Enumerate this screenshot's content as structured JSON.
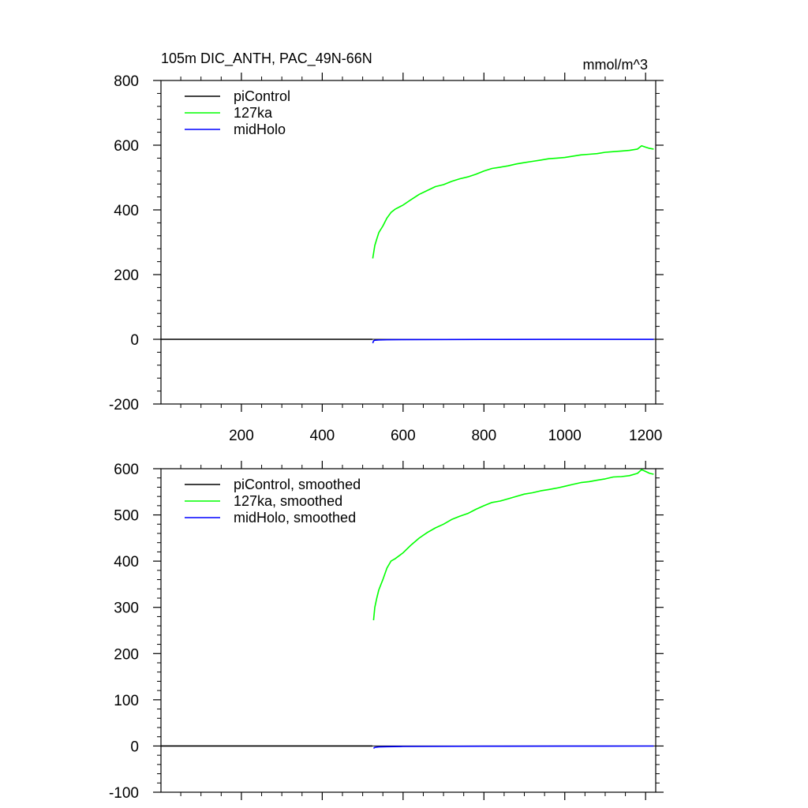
{
  "chart_data": [
    {
      "type": "line",
      "title": "105m DIC_ANTH, PAC_49N-66N",
      "units": "mmol/m^3",
      "xlim": [
        1,
        1225
      ],
      "ylim": [
        -200,
        800
      ],
      "xticks": [
        200,
        400,
        600,
        800,
        1000,
        1200
      ],
      "xtick_labels": [
        "200",
        "400",
        "600",
        "800",
        "1000",
        "1200"
      ],
      "yticks": [
        -200,
        0,
        200,
        400,
        600,
        800
      ],
      "ytick_labels": [
        "-200",
        "0",
        "200",
        "400",
        "600",
        "800"
      ],
      "y_minor_step": 40,
      "show_x_tick_labels": true,
      "legend_position": "top-left",
      "series": [
        {
          "name": "piControl",
          "color": "#000000",
          "x": [
            1,
            200,
            400,
            524
          ],
          "values": [
            0,
            0,
            0,
            0
          ]
        },
        {
          "name": "127ka",
          "color": "#00ff00",
          "x": [
            525,
            530,
            535,
            540,
            550,
            560,
            570,
            580,
            600,
            620,
            640,
            660,
            680,
            700,
            720,
            740,
            760,
            780,
            800,
            820,
            840,
            860,
            880,
            900,
            920,
            940,
            960,
            980,
            1000,
            1020,
            1040,
            1060,
            1080,
            1100,
            1120,
            1140,
            1160,
            1180,
            1190,
            1200,
            1210,
            1220
          ],
          "values": [
            250,
            290,
            310,
            330,
            350,
            375,
            392,
            402,
            415,
            432,
            448,
            460,
            472,
            478,
            488,
            496,
            502,
            510,
            520,
            528,
            532,
            536,
            542,
            546,
            550,
            554,
            558,
            560,
            562,
            566,
            570,
            572,
            574,
            578,
            580,
            582,
            584,
            588,
            598,
            594,
            590,
            588
          ]
        },
        {
          "name": "midHolo",
          "color": "#0000ff",
          "x": [
            525,
            527,
            530,
            540,
            560,
            600,
            800,
            1000,
            1200,
            1220
          ],
          "values": [
            -12,
            -5,
            -3,
            -2,
            -1.5,
            -1,
            -0.5,
            -0.3,
            -0.2,
            -0.2
          ]
        }
      ]
    },
    {
      "type": "line",
      "title": "",
      "units": "",
      "xlim": [
        1,
        1225
      ],
      "ylim": [
        -100,
        600
      ],
      "xticks": [
        200,
        400,
        600,
        800,
        1000,
        1200
      ],
      "xtick_labels": [],
      "yticks": [
        -100,
        0,
        100,
        200,
        300,
        400,
        500,
        600
      ],
      "ytick_labels": [
        "-100",
        "0",
        "100",
        "200",
        "300",
        "400",
        "500",
        "600"
      ],
      "y_minor_step": 20,
      "show_x_tick_labels": false,
      "legend_position": "top-left",
      "series": [
        {
          "name": "piControl, smoothed",
          "color": "#000000",
          "x": [
            1,
            200,
            400,
            524
          ],
          "values": [
            0,
            0,
            0,
            0
          ]
        },
        {
          "name": "127ka, smoothed",
          "color": "#00ff00",
          "x": [
            527,
            530,
            535,
            540,
            550,
            560,
            570,
            580,
            600,
            620,
            640,
            660,
            680,
            700,
            720,
            740,
            760,
            780,
            800,
            820,
            840,
            860,
            880,
            900,
            920,
            940,
            960,
            980,
            1000,
            1020,
            1040,
            1060,
            1080,
            1100,
            1120,
            1140,
            1160,
            1180,
            1190,
            1200,
            1210,
            1220
          ],
          "values": [
            272,
            300,
            320,
            338,
            360,
            385,
            400,
            405,
            418,
            435,
            450,
            462,
            472,
            480,
            490,
            497,
            503,
            512,
            520,
            527,
            530,
            535,
            540,
            545,
            548,
            552,
            555,
            558,
            562,
            566,
            570,
            572,
            575,
            578,
            582,
            583,
            585,
            590,
            598,
            594,
            590,
            588
          ]
        },
        {
          "name": "midHolo, smoothed",
          "color": "#0000ff",
          "x": [
            527,
            530,
            540,
            560,
            600,
            800,
            1000,
            1200,
            1220
          ],
          "values": [
            -5,
            -3,
            -2,
            -1.5,
            -1,
            -0.5,
            -0.3,
            -0.2,
            -0.2
          ]
        }
      ]
    }
  ]
}
